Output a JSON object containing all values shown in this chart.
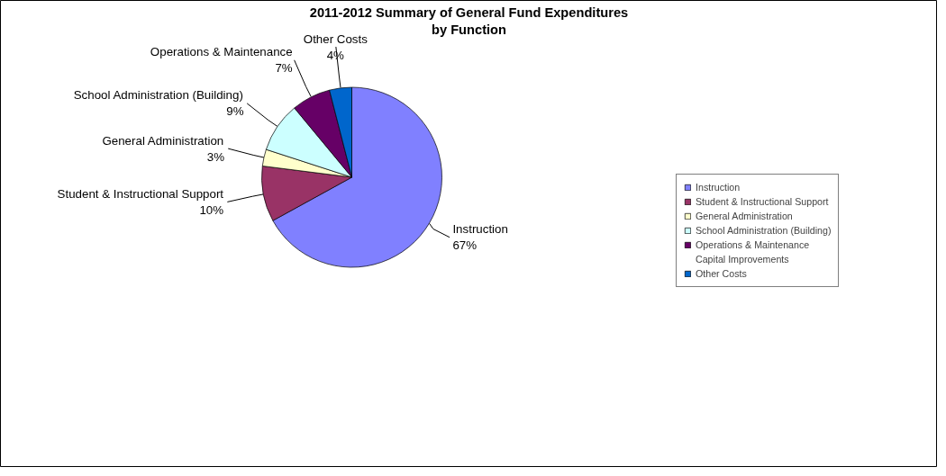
{
  "chart_data": {
    "type": "pie",
    "title": "2011-2012 Summary of General Fund Expenditures\nby Function",
    "categories": [
      "Instruction",
      "Student & Instructional Support",
      "General Administration",
      "School Administration (Building)",
      "Operations & Maintenance",
      "Capital Improvements",
      "Other Costs"
    ],
    "values": [
      67,
      10,
      3,
      9,
      7,
      0,
      4
    ],
    "value_labels": [
      "67%",
      "10%",
      "3%",
      "9%",
      "7%",
      null,
      "4%"
    ],
    "colors": [
      "#8080ff",
      "#993366",
      "#ffffcc",
      "#ccffff",
      "#660066",
      "#ff8080",
      "#0066cc"
    ],
    "legend": "right"
  }
}
